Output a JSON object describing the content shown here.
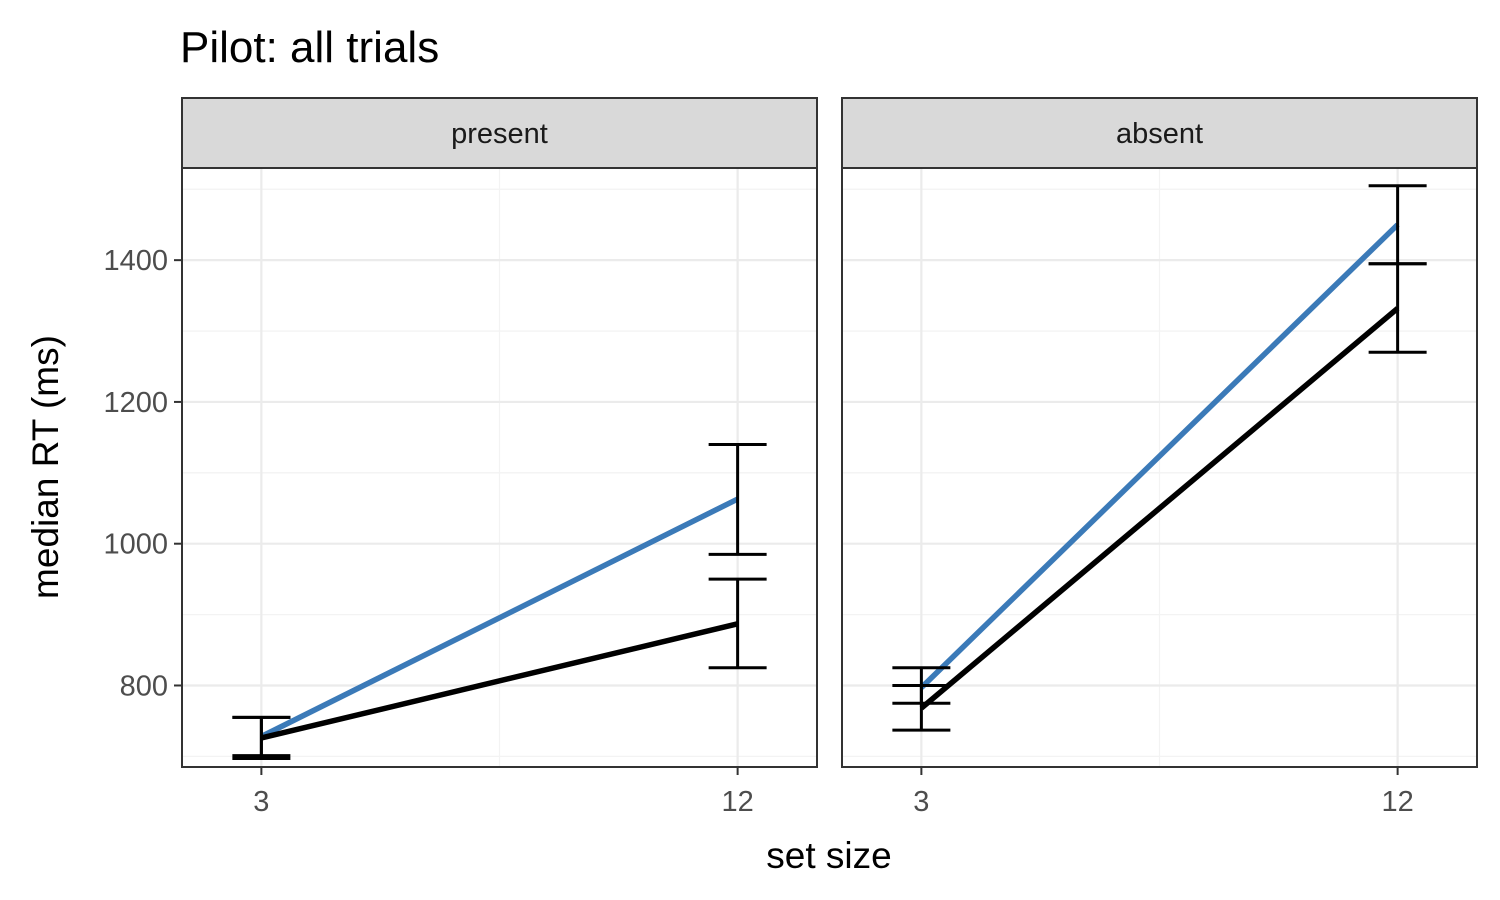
{
  "chart_data": {
    "type": "line",
    "title": "Pilot: all trials",
    "xlabel": "set size",
    "ylabel": "median RT (ms)",
    "x_ticks": [
      "3",
      "12"
    ],
    "y_ticks": [
      "800",
      "1000",
      "1200",
      "1400"
    ],
    "ylim": [
      685,
      1530
    ],
    "grid": true,
    "colors": {
      "blue": "#3b7ab8",
      "black": "#000000"
    },
    "panels": [
      {
        "label": "present",
        "series": [
          {
            "color": "#3b7ab8",
            "points": [
              {
                "x": 3,
                "y": 728,
                "ymin": 701,
                "ymax": 755
              },
              {
                "x": 12,
                "y": 1063,
                "ymin": 985,
                "ymax": 1140
              }
            ]
          },
          {
            "color": "#000000",
            "points": [
              {
                "x": 3,
                "y": 726,
                "ymin": 697,
                "ymax": 755
              },
              {
                "x": 12,
                "y": 887,
                "ymin": 825,
                "ymax": 950
              }
            ]
          }
        ]
      },
      {
        "label": "absent",
        "series": [
          {
            "color": "#3b7ab8",
            "points": [
              {
                "x": 3,
                "y": 797,
                "ymin": 775,
                "ymax": 825
              },
              {
                "x": 12,
                "y": 1450,
                "ymin": 1395,
                "ymax": 1505
              }
            ]
          },
          {
            "color": "#000000",
            "points": [
              {
                "x": 3,
                "y": 768,
                "ymin": 737,
                "ymax": 800
              },
              {
                "x": 12,
                "y": 1332,
                "ymin": 1270,
                "ymax": 1395
              }
            ]
          }
        ]
      }
    ]
  }
}
